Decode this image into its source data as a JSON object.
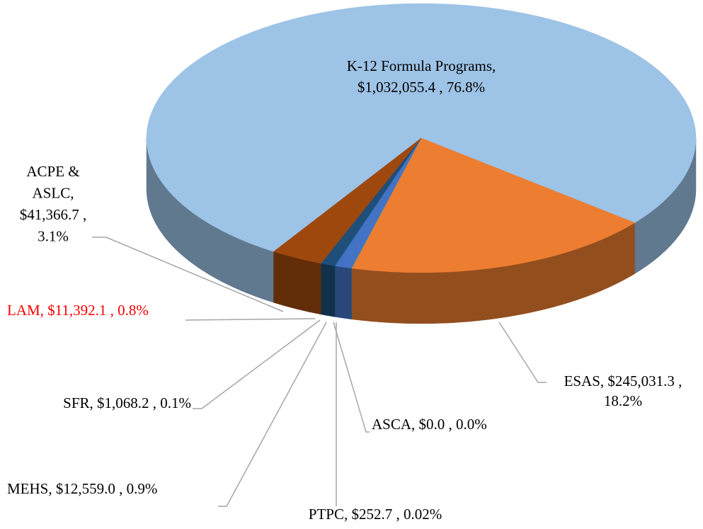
{
  "chart_data": {
    "type": "pie",
    "labels": [
      [
        "K-12 Formula Programs,",
        "$1,032,055.4 , 76.8%"
      ],
      [
        "ESAS, $245,031.3 ,",
        "18.2%"
      ],
      [
        "ASCA, $0.0 , 0.0%"
      ],
      [
        "PTPC, $252.7 , 0.02%"
      ],
      [
        "MEHS, $12,559.0 , 0.9%"
      ],
      [
        "SFR, $1,068.2 , 0.1%"
      ],
      [
        "LAM, $11,392.1 , 0.8%"
      ],
      [
        "ACPE &",
        "ASLC,",
        "$41,366.7 ,",
        "3.1%"
      ]
    ],
    "values": [
      1032055.4,
      245031.3,
      0.0,
      252.7,
      12559.0,
      1068.2,
      11392.1,
      41366.7
    ],
    "colors": [
      "#9dc3e6",
      "#ed7d31",
      "#a5a5a5",
      "#70ad47",
      "#4472c4",
      "#2e75b6",
      "#1f4e79",
      "#9e480e"
    ],
    "label_colors": [
      "#000000",
      "#000000",
      "#000000",
      "#000000",
      "#000000",
      "#000000",
      "#ff0000",
      "#000000"
    ]
  }
}
